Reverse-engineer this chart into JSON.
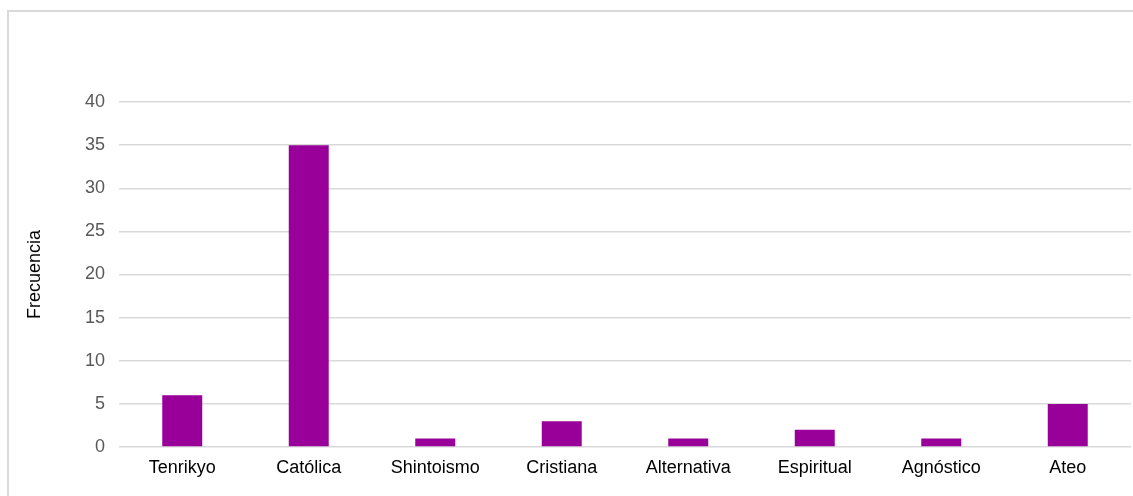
{
  "chart_data": {
    "type": "bar",
    "categories": [
      "Tenrikyo",
      "Católica",
      "Shintoismo",
      "Cristiana",
      "Alternativa",
      "Espiritual",
      "Agnóstico",
      "Ateo"
    ],
    "values": [
      6,
      35,
      1,
      3,
      1,
      2,
      1,
      5
    ],
    "color": "#990099",
    "ylabel": "Frecuencia",
    "ylim": [
      0,
      40
    ],
    "yticks": [
      0,
      5,
      10,
      15,
      20,
      25,
      30,
      35,
      40
    ],
    "grid": "y"
  }
}
